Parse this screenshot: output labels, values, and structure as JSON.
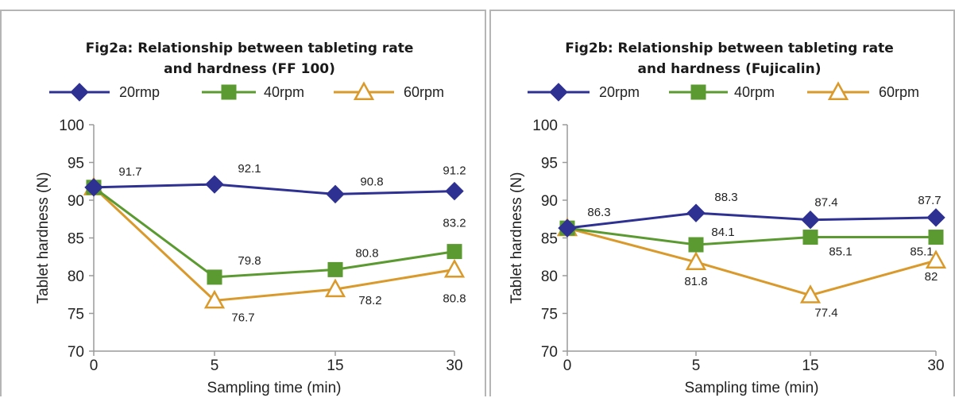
{
  "chart_data": [
    {
      "type": "line",
      "title": "Fig2a: Relationship between tableting rate and hardness (FF 100)",
      "title_lines": [
        "Fig2a: Relationship between tableting rate",
        "and hardness (FF 100)"
      ],
      "xlabel": "Sampling time (min)",
      "ylabel": "Tablet hardness (N)",
      "categories": [
        "0",
        "5",
        "15",
        "30"
      ],
      "ylim": [
        70,
        100
      ],
      "yticks": [
        70,
        75,
        80,
        85,
        90,
        95,
        100
      ],
      "legend_position": "top",
      "series": [
        {
          "name": "20rmp",
          "marker": "diamond",
          "color": "#2e3192",
          "values": [
            91.7,
            92.1,
            90.8,
            91.2
          ],
          "labels": [
            "91.7",
            "92.1",
            "90.8",
            "91.2"
          ]
        },
        {
          "name": "40rpm",
          "marker": "square",
          "color": "#5a9a30",
          "values": [
            91.7,
            79.8,
            80.8,
            83.2
          ],
          "labels": [
            "",
            "79.8",
            "80.8",
            "83.2"
          ]
        },
        {
          "name": "60rpm",
          "marker": "triangle",
          "color": "#d99a2b",
          "values": [
            91.7,
            76.7,
            78.2,
            80.8
          ],
          "labels": [
            "",
            "76.7",
            "78.2",
            "80.8"
          ]
        }
      ]
    },
    {
      "type": "line",
      "title": "Fig2b: Relationship between tableting rate and hardness (Fujicalin)",
      "title_lines": [
        "Fig2b: Relationship between tableting rate",
        "and hardness (Fujicalin)"
      ],
      "xlabel": "Sampling time (min)",
      "ylabel": "Tablet hardness (N)",
      "categories": [
        "0",
        "5",
        "15",
        "30"
      ],
      "ylim": [
        70,
        100
      ],
      "yticks": [
        70,
        75,
        80,
        85,
        90,
        95,
        100
      ],
      "legend_position": "top",
      "series": [
        {
          "name": "20rpm",
          "marker": "diamond",
          "color": "#2e3192",
          "values": [
            86.3,
            88.3,
            87.4,
            87.7
          ],
          "labels": [
            "86.3",
            "88.3",
            "87.4",
            "87.7"
          ]
        },
        {
          "name": "40rpm",
          "marker": "square",
          "color": "#5a9a30",
          "values": [
            86.3,
            84.1,
            85.1,
            85.1
          ],
          "labels": [
            "",
            "84.1",
            "85.1",
            "85.1"
          ]
        },
        {
          "name": "60rpm",
          "marker": "triangle",
          "color": "#d99a2b",
          "values": [
            86.3,
            81.8,
            77.4,
            82
          ],
          "labels": [
            "",
            "81.8",
            "77.4",
            "82"
          ]
        }
      ]
    }
  ]
}
